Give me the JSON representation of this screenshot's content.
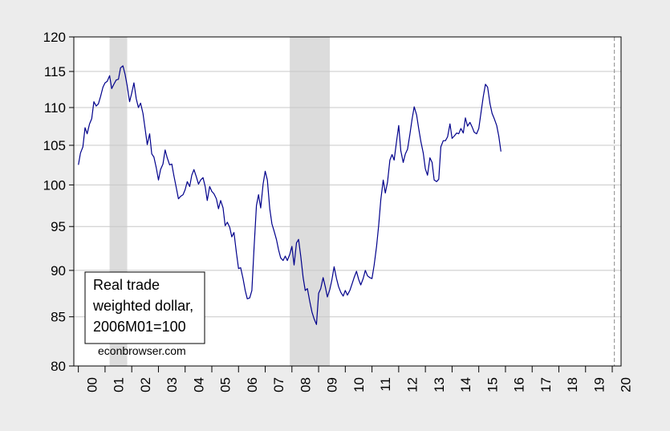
{
  "chart_data": {
    "type": "line",
    "title": "",
    "xlabel": "",
    "ylabel": "",
    "y_scale": "log",
    "ylim": [
      80,
      120
    ],
    "y_ticks": [
      80,
      85,
      90,
      95,
      100,
      105,
      110,
      115,
      120
    ],
    "x_range": [
      1999.83,
      2020.33
    ],
    "x_tick_labels": [
      "00",
      "01",
      "02",
      "03",
      "04",
      "05",
      "06",
      "07",
      "08",
      "09",
      "10",
      "11",
      "12",
      "13",
      "14",
      "15",
      "16",
      "17",
      "18",
      "19",
      "20"
    ],
    "grid": "horizontal",
    "recession_bands": [
      [
        2001.17,
        2001.83
      ],
      [
        2007.92,
        2009.42
      ]
    ],
    "vertical_marker": 2020.08,
    "legend": {
      "placement": "bottom-left",
      "lines": [
        "Real trade",
        "weighted dollar,",
        "2006M01=100"
      ]
    },
    "credit": "econbrowser.com",
    "line_color": "#00008b",
    "series": [
      {
        "values": [
          [
            2000.0,
            102.5
          ],
          [
            2000.08,
            104.0
          ],
          [
            2000.17,
            104.8
          ],
          [
            2000.25,
            107.3
          ],
          [
            2000.33,
            106.5
          ],
          [
            2000.42,
            107.8
          ],
          [
            2000.5,
            108.5
          ],
          [
            2000.58,
            110.8
          ],
          [
            2000.67,
            110.2
          ],
          [
            2000.75,
            110.5
          ],
          [
            2000.83,
            111.5
          ],
          [
            2000.92,
            112.8
          ],
          [
            2001.0,
            113.4
          ],
          [
            2001.08,
            113.6
          ],
          [
            2001.17,
            114.4
          ],
          [
            2001.25,
            112.6
          ],
          [
            2001.33,
            113.2
          ],
          [
            2001.42,
            113.8
          ],
          [
            2001.5,
            113.9
          ],
          [
            2001.58,
            115.5
          ],
          [
            2001.67,
            115.8
          ],
          [
            2001.75,
            114.6
          ],
          [
            2001.83,
            113.0
          ],
          [
            2001.92,
            110.8
          ],
          [
            2002.0,
            112.0
          ],
          [
            2002.08,
            113.4
          ],
          [
            2002.17,
            111.2
          ],
          [
            2002.25,
            110.0
          ],
          [
            2002.33,
            110.6
          ],
          [
            2002.42,
            109.2
          ],
          [
            2002.5,
            107.2
          ],
          [
            2002.58,
            105.1
          ],
          [
            2002.67,
            106.5
          ],
          [
            2002.75,
            103.9
          ],
          [
            2002.83,
            103.5
          ],
          [
            2002.92,
            102.1
          ],
          [
            2003.0,
            100.6
          ],
          [
            2003.08,
            101.9
          ],
          [
            2003.17,
            102.6
          ],
          [
            2003.25,
            104.4
          ],
          [
            2003.33,
            103.4
          ],
          [
            2003.42,
            102.5
          ],
          [
            2003.5,
            102.6
          ],
          [
            2003.58,
            101.1
          ],
          [
            2003.67,
            99.6
          ],
          [
            2003.75,
            98.3
          ],
          [
            2003.83,
            98.6
          ],
          [
            2003.92,
            98.8
          ],
          [
            2004.0,
            99.4
          ],
          [
            2004.08,
            100.4
          ],
          [
            2004.17,
            99.8
          ],
          [
            2004.25,
            101.2
          ],
          [
            2004.33,
            101.9
          ],
          [
            2004.42,
            101.0
          ],
          [
            2004.5,
            100.1
          ],
          [
            2004.58,
            100.6
          ],
          [
            2004.67,
            100.9
          ],
          [
            2004.75,
            99.8
          ],
          [
            2004.83,
            98.1
          ],
          [
            2004.92,
            99.8
          ],
          [
            2005.0,
            99.2
          ],
          [
            2005.08,
            98.9
          ],
          [
            2005.17,
            98.3
          ],
          [
            2005.25,
            97.1
          ],
          [
            2005.33,
            98.1
          ],
          [
            2005.42,
            97.2
          ],
          [
            2005.5,
            95.1
          ],
          [
            2005.58,
            95.5
          ],
          [
            2005.67,
            94.9
          ],
          [
            2005.75,
            93.8
          ],
          [
            2005.83,
            94.3
          ],
          [
            2005.92,
            92.0
          ],
          [
            2006.0,
            90.2
          ],
          [
            2006.08,
            90.3
          ],
          [
            2006.17,
            89.1
          ],
          [
            2006.25,
            87.8
          ],
          [
            2006.33,
            86.9
          ],
          [
            2006.42,
            87.0
          ],
          [
            2006.5,
            87.8
          ],
          [
            2006.58,
            92.5
          ],
          [
            2006.67,
            97.5
          ],
          [
            2006.75,
            98.8
          ],
          [
            2006.83,
            97.2
          ],
          [
            2006.92,
            100.1
          ],
          [
            2007.0,
            101.7
          ],
          [
            2007.08,
            100.6
          ],
          [
            2007.17,
            97.1
          ],
          [
            2007.25,
            95.3
          ],
          [
            2007.33,
            94.5
          ],
          [
            2007.42,
            93.5
          ],
          [
            2007.5,
            92.3
          ],
          [
            2007.58,
            91.4
          ],
          [
            2007.67,
            91.1
          ],
          [
            2007.75,
            91.6
          ],
          [
            2007.83,
            91.1
          ],
          [
            2007.92,
            91.8
          ],
          [
            2008.0,
            92.7
          ],
          [
            2008.08,
            90.6
          ],
          [
            2008.17,
            93.1
          ],
          [
            2008.25,
            93.5
          ],
          [
            2008.33,
            91.6
          ],
          [
            2008.42,
            89.2
          ],
          [
            2008.5,
            87.8
          ],
          [
            2008.58,
            88.0
          ],
          [
            2008.67,
            86.6
          ],
          [
            2008.75,
            85.5
          ],
          [
            2008.83,
            84.8
          ],
          [
            2008.92,
            84.2
          ],
          [
            2009.0,
            87.5
          ],
          [
            2009.08,
            88.0
          ],
          [
            2009.17,
            89.2
          ],
          [
            2009.25,
            88.2
          ],
          [
            2009.33,
            87.1
          ],
          [
            2009.42,
            87.9
          ],
          [
            2009.5,
            89.0
          ],
          [
            2009.58,
            90.4
          ],
          [
            2009.67,
            89.1
          ],
          [
            2009.75,
            88.2
          ],
          [
            2009.83,
            87.6
          ],
          [
            2009.92,
            87.2
          ],
          [
            2010.0,
            87.8
          ],
          [
            2010.08,
            87.3
          ],
          [
            2010.17,
            87.8
          ],
          [
            2010.25,
            88.5
          ],
          [
            2010.33,
            89.2
          ],
          [
            2010.42,
            89.9
          ],
          [
            2010.5,
            89.0
          ],
          [
            2010.58,
            88.4
          ],
          [
            2010.67,
            89.1
          ],
          [
            2010.75,
            90.0
          ],
          [
            2010.83,
            89.4
          ],
          [
            2010.92,
            89.2
          ],
          [
            2011.0,
            89.1
          ],
          [
            2011.08,
            90.6
          ],
          [
            2011.17,
            92.7
          ],
          [
            2011.25,
            95.1
          ],
          [
            2011.33,
            98.2
          ],
          [
            2011.42,
            100.6
          ],
          [
            2011.5,
            99.0
          ],
          [
            2011.58,
            100.3
          ],
          [
            2011.67,
            103.1
          ],
          [
            2011.75,
            103.8
          ],
          [
            2011.83,
            103.1
          ],
          [
            2011.92,
            105.5
          ],
          [
            2012.0,
            107.6
          ],
          [
            2012.08,
            104.3
          ],
          [
            2012.17,
            102.8
          ],
          [
            2012.25,
            103.9
          ],
          [
            2012.33,
            104.5
          ],
          [
            2012.42,
            106.4
          ],
          [
            2012.5,
            108.4
          ],
          [
            2012.58,
            110.1
          ],
          [
            2012.67,
            109.0
          ],
          [
            2012.75,
            107.2
          ],
          [
            2012.83,
            105.5
          ],
          [
            2012.92,
            104.0
          ],
          [
            2013.0,
            102.0
          ],
          [
            2013.08,
            101.2
          ],
          [
            2013.17,
            103.4
          ],
          [
            2013.25,
            102.8
          ],
          [
            2013.33,
            100.6
          ],
          [
            2013.42,
            100.4
          ],
          [
            2013.5,
            100.7
          ],
          [
            2013.58,
            104.8
          ],
          [
            2013.67,
            105.6
          ],
          [
            2013.75,
            105.6
          ],
          [
            2013.83,
            106.1
          ],
          [
            2013.92,
            107.8
          ],
          [
            2014.0,
            105.9
          ],
          [
            2014.08,
            106.2
          ],
          [
            2014.17,
            106.6
          ],
          [
            2014.25,
            106.5
          ],
          [
            2014.33,
            107.2
          ],
          [
            2014.42,
            106.6
          ],
          [
            2014.5,
            108.6
          ],
          [
            2014.58,
            107.5
          ],
          [
            2014.67,
            108.0
          ],
          [
            2014.75,
            107.4
          ],
          [
            2014.83,
            106.7
          ],
          [
            2014.92,
            106.5
          ],
          [
            2015.0,
            107.2
          ],
          [
            2015.08,
            109.2
          ],
          [
            2015.17,
            111.5
          ],
          [
            2015.25,
            113.2
          ],
          [
            2015.33,
            112.8
          ],
          [
            2015.42,
            110.5
          ],
          [
            2015.5,
            109.2
          ],
          [
            2015.58,
            108.5
          ],
          [
            2015.67,
            107.6
          ],
          [
            2015.75,
            106.2
          ],
          [
            2015.83,
            104.2
          ]
        ]
      }
    ]
  }
}
